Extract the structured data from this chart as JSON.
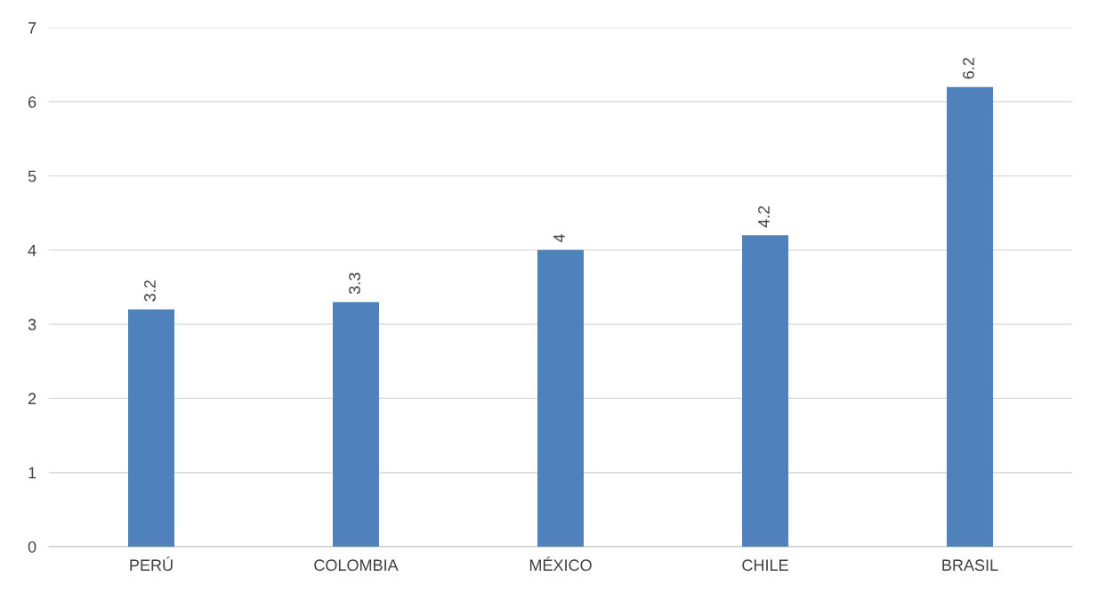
{
  "chart_data": {
    "type": "bar",
    "categories": [
      "PERÚ",
      "COLOMBIA",
      "MÉXICO",
      "CHILE",
      "BRASIL"
    ],
    "values": [
      3.2,
      3.3,
      4,
      4.2,
      6.2
    ],
    "color": "#4f81bd",
    "ylim": [
      0,
      7
    ],
    "yticks": [
      0,
      1,
      2,
      3,
      4,
      5,
      6,
      7
    ],
    "grid": "y",
    "data_labels": true,
    "legend": false
  }
}
